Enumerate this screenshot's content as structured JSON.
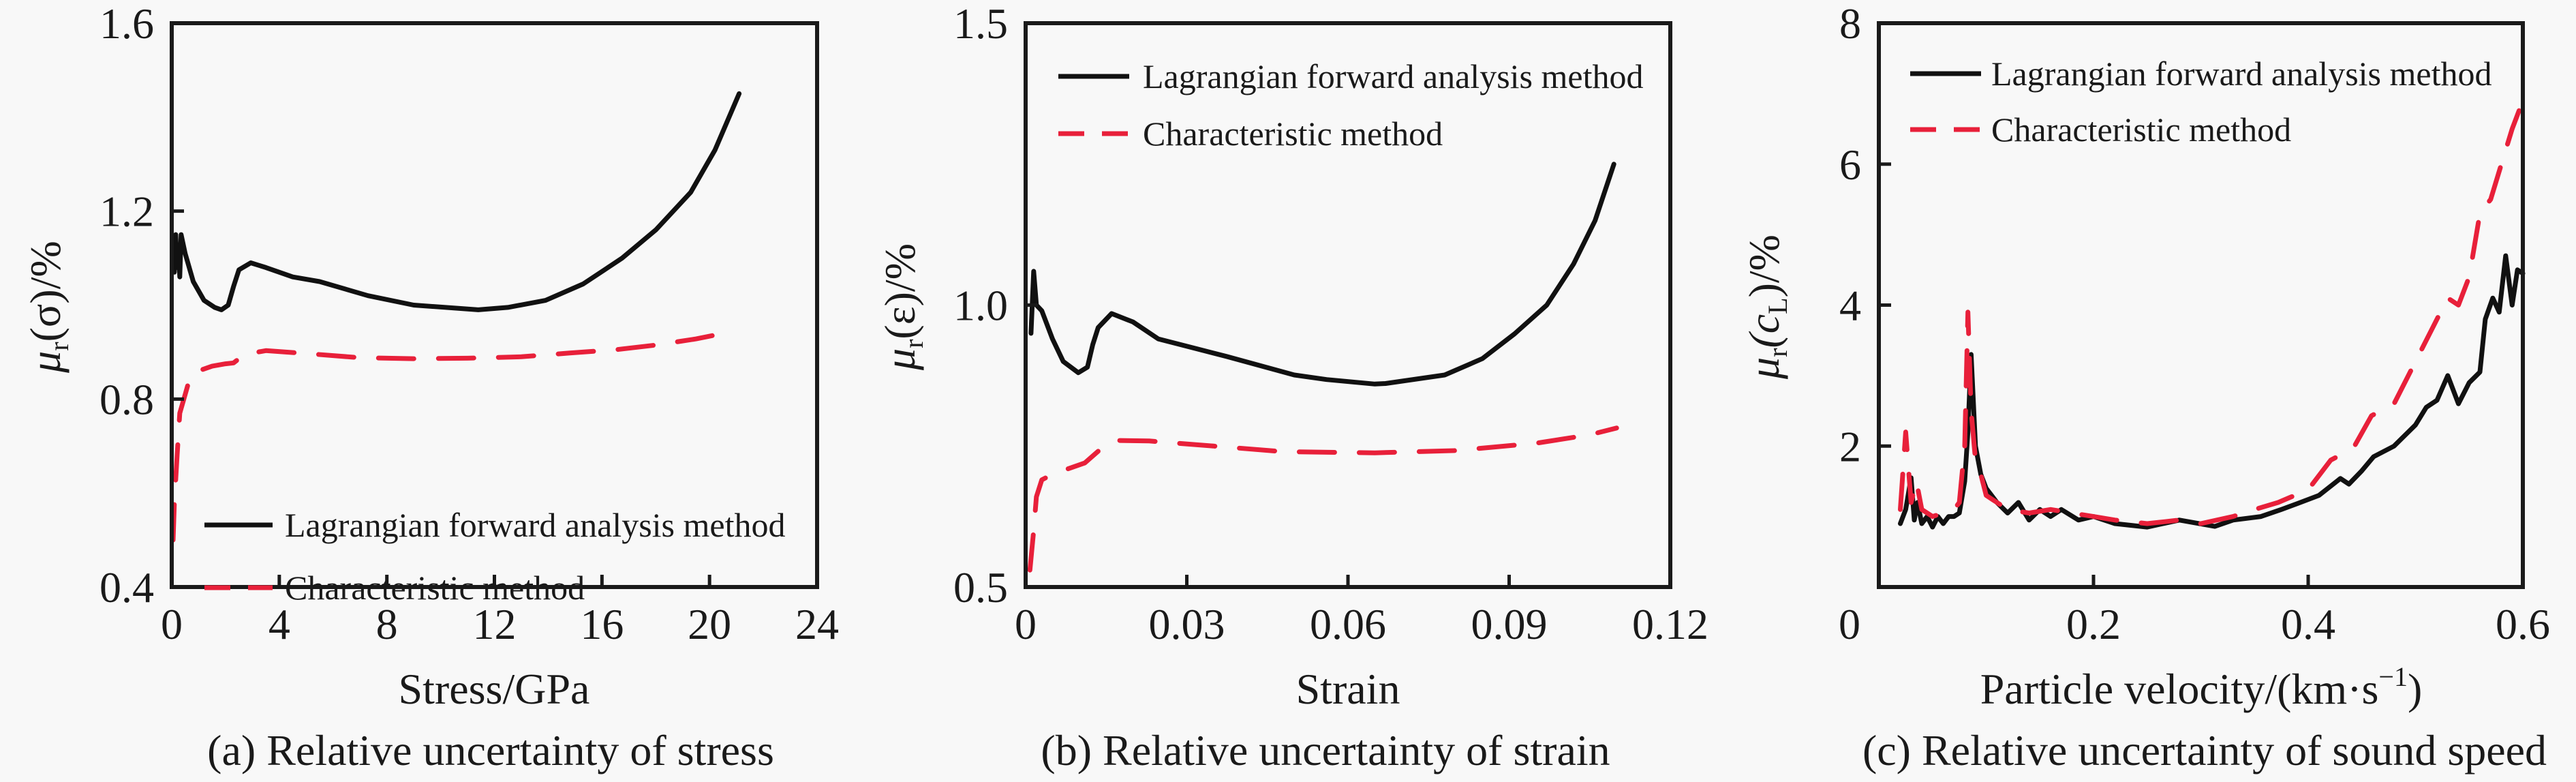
{
  "colors": {
    "lagrangian": "#111111",
    "characteristic": "#e8203a",
    "axis": "#1a1a1a",
    "background": "#f8f8f8"
  },
  "chart_data": [
    {
      "type": "line",
      "panel": "a",
      "caption": "(a) Relative uncertainty of stress",
      "xlabel": "Stress/GPa",
      "ylabel_main": "μ",
      "ylabel_sub": "r",
      "ylabel_arg": "(σ)/%",
      "xlim": [
        0,
        24
      ],
      "ylim": [
        0.4,
        1.6
      ],
      "xticks": [
        0,
        4,
        8,
        12,
        16,
        20,
        24
      ],
      "xtick_labels": [
        "0",
        "4",
        "8",
        "12",
        "16",
        "20",
        "24"
      ],
      "yticks": [
        0.4,
        0.8,
        1.2,
        1.6
      ],
      "ytick_labels": [
        "0.4",
        "0.8",
        "1.2",
        "1.6"
      ],
      "grid": false,
      "legend_position": "lower-center",
      "series": [
        {
          "name": "Lagrangian forward analysis method",
          "style": "solid",
          "x": [
            0.05,
            0.1,
            0.15,
            0.2,
            0.25,
            0.3,
            0.35,
            0.5,
            0.8,
            1.2,
            1.6,
            1.85,
            2.1,
            2.3,
            2.5,
            2.94,
            3.5,
            4.5,
            5.5,
            7.3,
            9.0,
            11.4,
            12.5,
            13.9,
            15.3,
            16.75,
            18.0,
            19.3,
            20.2,
            21.1
          ],
          "y": [
            1.12,
            1.07,
            1.15,
            1.08,
            1.12,
            1.06,
            1.15,
            1.11,
            1.05,
            1.01,
            0.995,
            0.99,
            1.0,
            1.04,
            1.075,
            1.09,
            1.08,
            1.06,
            1.05,
            1.02,
            1.0,
            0.99,
            0.995,
            1.01,
            1.045,
            1.1,
            1.16,
            1.24,
            1.33,
            1.45
          ]
        },
        {
          "name": "Characteristic method",
          "style": "dashed",
          "x": [
            0.05,
            0.1,
            0.2,
            0.3,
            0.45,
            0.7,
            1.0,
            1.5,
            2.0,
            2.3,
            2.7,
            3.5,
            5.0,
            7.0,
            9.0,
            11.0,
            13.0,
            14.8,
            16.5,
            18.0,
            19.5,
            20.1
          ],
          "y": [
            0.5,
            0.58,
            0.68,
            0.77,
            0.8,
            0.85,
            0.86,
            0.87,
            0.875,
            0.877,
            0.895,
            0.903,
            0.897,
            0.888,
            0.886,
            0.887,
            0.89,
            0.898,
            0.905,
            0.915,
            0.928,
            0.935
          ]
        }
      ]
    },
    {
      "type": "line",
      "panel": "b",
      "caption": "(b) Relative uncertainty of strain",
      "xlabel": "Strain",
      "ylabel_main": "μ",
      "ylabel_sub": "r",
      "ylabel_arg": "(ε)/%",
      "xlim": [
        0,
        0.12
      ],
      "ylim": [
        0.5,
        1.5
      ],
      "xticks": [
        0,
        0.03,
        0.06,
        0.09,
        0.12
      ],
      "xtick_labels": [
        "0",
        "0.03",
        "0.06",
        "0.09",
        "0.12"
      ],
      "yticks": [
        0.5,
        1.0,
        1.5
      ],
      "ytick_labels": [
        "0.5",
        "1.0",
        "1.5"
      ],
      "grid": false,
      "legend_position": "top-left",
      "series": [
        {
          "name": "Lagrangian forward analysis method",
          "style": "solid",
          "x": [
            0.001,
            0.0015,
            0.002,
            0.003,
            0.005,
            0.007,
            0.0098,
            0.0115,
            0.0125,
            0.0135,
            0.016,
            0.02,
            0.0247,
            0.0374,
            0.05,
            0.056,
            0.065,
            0.067,
            0.078,
            0.085,
            0.091,
            0.097,
            0.102,
            0.106,
            0.1095
          ],
          "y": [
            0.95,
            1.06,
            1.0,
            0.99,
            0.94,
            0.9,
            0.88,
            0.89,
            0.93,
            0.96,
            0.985,
            0.97,
            0.94,
            0.909,
            0.876,
            0.868,
            0.86,
            0.861,
            0.876,
            0.905,
            0.949,
            1.0,
            1.073,
            1.15,
            1.25
          ]
        },
        {
          "name": "Characteristic method",
          "style": "dashed",
          "x": [
            0.0008,
            0.0015,
            0.002,
            0.003,
            0.005,
            0.008,
            0.011,
            0.014,
            0.017,
            0.023,
            0.035,
            0.048,
            0.065,
            0.08,
            0.095,
            0.105,
            0.11
          ],
          "y": [
            0.53,
            0.6,
            0.66,
            0.69,
            0.7,
            0.71,
            0.72,
            0.745,
            0.76,
            0.759,
            0.75,
            0.74,
            0.738,
            0.742,
            0.755,
            0.77,
            0.782
          ]
        }
      ]
    },
    {
      "type": "line",
      "panel": "c",
      "caption": "(c) Relative uncertainty of sound speed",
      "xlabel": "Particle velocity/(km·s",
      "xlabel_sup": "−1",
      "xlabel_tail": ")",
      "ylabel_main": "μ",
      "ylabel_sub": "r",
      "ylabel_arg_open": "(c",
      "ylabel_arg_sub": "L",
      "ylabel_arg_close": ")/%",
      "xlim": [
        0,
        0.6
      ],
      "ylim": [
        0,
        8
      ],
      "xticks": [
        0,
        0.2,
        0.4,
        0.6
      ],
      "xtick_labels": [
        "0",
        "0.2",
        "0.4",
        "0.6"
      ],
      "yticks": [
        0,
        2,
        4,
        6,
        8
      ],
      "ytick_labels": [
        "0",
        "2",
        "4",
        "6",
        "8"
      ],
      "grid": false,
      "legend_position": "top-left",
      "series": [
        {
          "name": "Lagrangian forward analysis method",
          "style": "solid",
          "x": [
            0.02,
            0.025,
            0.03,
            0.033,
            0.036,
            0.04,
            0.045,
            0.05,
            0.055,
            0.06,
            0.065,
            0.07,
            0.075,
            0.08,
            0.083,
            0.086,
            0.09,
            0.095,
            0.1,
            0.11,
            0.12,
            0.13,
            0.14,
            0.15,
            0.16,
            0.17,
            0.186,
            0.2,
            0.22,
            0.25,
            0.28,
            0.313,
            0.33,
            0.356,
            0.375,
            0.391,
            0.41,
            0.43,
            0.438,
            0.45,
            0.461,
            0.48,
            0.5,
            0.51,
            0.52,
            0.53,
            0.54,
            0.55,
            0.56,
            0.565,
            0.572,
            0.578,
            0.584,
            0.59,
            0.595,
            0.6
          ],
          "y": [
            0.9,
            1.1,
            1.55,
            0.95,
            1.2,
            0.9,
            1.0,
            0.85,
            1.0,
            0.9,
            1.0,
            1.0,
            1.05,
            1.5,
            2.2,
            3.3,
            2.0,
            1.6,
            1.4,
            1.2,
            1.05,
            1.2,
            0.95,
            1.1,
            1.0,
            1.1,
            0.95,
            1.0,
            0.9,
            0.85,
            0.95,
            0.86,
            0.95,
            1.0,
            1.1,
            1.19,
            1.3,
            1.54,
            1.46,
            1.65,
            1.85,
            2.0,
            2.3,
            2.55,
            2.65,
            3.0,
            2.6,
            2.9,
            3.05,
            3.8,
            4.1,
            3.9,
            4.7,
            4.0,
            4.5,
            4.45
          ]
        },
        {
          "name": "Characteristic method",
          "style": "dashed",
          "x": [
            0.02,
            0.025,
            0.03,
            0.035,
            0.04,
            0.05,
            0.06,
            0.07,
            0.075,
            0.08,
            0.083,
            0.086,
            0.09,
            0.095,
            0.1,
            0.11,
            0.12,
            0.14,
            0.16,
            0.18,
            0.2,
            0.22,
            0.25,
            0.28,
            0.3,
            0.33,
            0.35,
            0.372,
            0.4,
            0.421,
            0.442,
            0.459,
            0.48,
            0.5,
            0.52,
            0.53,
            0.54,
            0.55,
            0.56,
            0.57,
            0.58,
            0.59,
            0.6
          ],
          "y": [
            1.1,
            2.2,
            1.2,
            1.5,
            1.1,
            1.0,
            1.05,
            1.1,
            1.2,
            2.0,
            3.9,
            2.5,
            1.8,
            1.6,
            1.3,
            1.2,
            1.1,
            1.05,
            1.1,
            1.05,
            1.0,
            0.95,
            0.9,
            0.95,
            0.9,
            1.0,
            1.1,
            1.2,
            1.38,
            1.8,
            1.97,
            2.43,
            2.6,
            3.2,
            3.8,
            4.1,
            4.0,
            4.4,
            5.3,
            5.5,
            6.0,
            6.5,
            6.9
          ]
        }
      ]
    }
  ]
}
